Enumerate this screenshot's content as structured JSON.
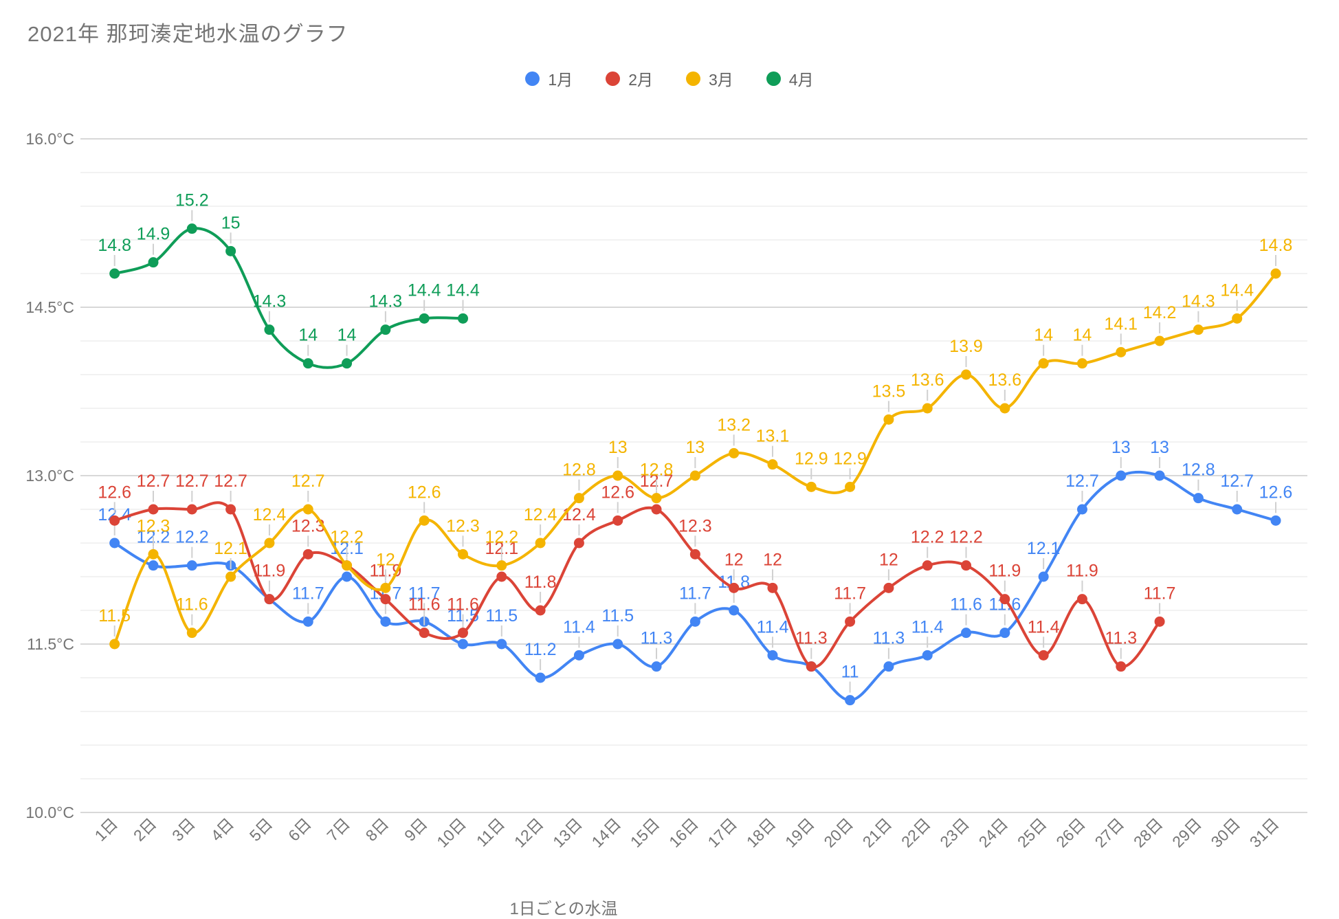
{
  "chart_data": {
    "type": "line",
    "title": "2021年 那珂湊定地水温のグラフ",
    "xlabel": "1日ごとの水温",
    "ylabel": "",
    "ylim": [
      10.0,
      16.0
    ],
    "y_major_step": 1.5,
    "y_minor_step": 0.3,
    "grid": true,
    "smooth": true,
    "legend_position": "top",
    "point_labels": true,
    "y_ticks": [
      {
        "label": "10.0°C",
        "value": 10.0
      },
      {
        "label": "11.5°C",
        "value": 11.5
      },
      {
        "label": "13.0°C",
        "value": 13.0
      },
      {
        "label": "14.5°C",
        "value": 14.5
      },
      {
        "label": "16.0°C",
        "value": 16.0
      }
    ],
    "categories": [
      "1日",
      "2日",
      "3日",
      "4日",
      "5日",
      "6日",
      "7日",
      "8日",
      "9日",
      "10日",
      "11日",
      "12日",
      "13日",
      "14日",
      "15日",
      "16日",
      "17日",
      "18日",
      "19日",
      "20日",
      "21日",
      "22日",
      "23日",
      "24日",
      "25日",
      "26日",
      "27日",
      "28日",
      "29日",
      "30日",
      "31日"
    ],
    "series": [
      {
        "name": "1月",
        "color": "#4285F4",
        "values": [
          12.4,
          12.2,
          12.2,
          12.2,
          11.9,
          11.7,
          12.1,
          11.7,
          11.7,
          11.5,
          11.5,
          11.2,
          11.4,
          11.5,
          11.3,
          11.7,
          11.8,
          11.4,
          11.3,
          11.0,
          11.3,
          11.4,
          11.6,
          11.6,
          12.1,
          12.7,
          13.0,
          13.0,
          12.8,
          12.7,
          12.6
        ],
        "labels": [
          "12.4",
          "12.2",
          "12.2",
          null,
          null,
          "11.7",
          "12.1",
          "11.7",
          "11.7",
          "11.5",
          "11.5",
          "11.2",
          "11.4",
          "11.5",
          "11.3",
          "11.7",
          "11.8",
          "11.4",
          null,
          "11",
          "11.3",
          "11.4",
          "11.6",
          "11.6",
          "12.1",
          "12.7",
          "13",
          "13",
          "12.8",
          "12.7",
          "12.6"
        ]
      },
      {
        "name": "2月",
        "color": "#DB4437",
        "values": [
          12.6,
          12.7,
          12.7,
          12.7,
          11.9,
          12.3,
          12.2,
          11.9,
          11.6,
          11.6,
          12.1,
          11.8,
          12.4,
          12.6,
          12.7,
          12.3,
          12.0,
          12.0,
          11.3,
          11.7,
          12.0,
          12.2,
          12.2,
          11.9,
          11.4,
          11.9,
          11.3,
          11.7
        ],
        "labels": [
          "12.6",
          "12.7",
          "12.7",
          "12.7",
          "11.9",
          "12.3",
          null,
          "11.9",
          "11.6",
          "11.6",
          "12.1",
          "11.8",
          "12.4",
          "12.6",
          "12.7",
          "12.3",
          "12",
          "12",
          "11.3",
          "11.7",
          "12",
          "12.2",
          "12.2",
          "11.9",
          "11.4",
          "11.9",
          "11.3",
          "11.7"
        ]
      },
      {
        "name": "3月",
        "color": "#F4B400",
        "values": [
          11.5,
          12.3,
          11.6,
          12.1,
          12.4,
          12.7,
          12.2,
          12.0,
          12.6,
          12.3,
          12.2,
          12.4,
          12.8,
          13.0,
          12.8,
          13.0,
          13.2,
          13.1,
          12.9,
          12.9,
          13.5,
          13.6,
          13.9,
          13.6,
          14.0,
          14.0,
          14.1,
          14.2,
          14.3,
          14.4,
          14.8
        ],
        "labels": [
          "11.5",
          "12.3",
          "11.6",
          "12.1",
          "12.4",
          "12.7",
          "12.2",
          "12",
          "12.6",
          "12.3",
          "12.2",
          "12.4",
          "12.8",
          "13",
          "12.8",
          "13",
          "13.2",
          "13.1",
          "12.9",
          "12.9",
          "13.5",
          "13.6",
          "13.9",
          "13.6",
          "14",
          "14",
          "14.1",
          "14.2",
          "14.3",
          "14.4",
          "14.8"
        ]
      },
      {
        "name": "4月",
        "color": "#0F9D58",
        "values": [
          14.8,
          14.9,
          15.2,
          15.0,
          14.3,
          14.0,
          14.0,
          14.3,
          14.4,
          14.4
        ],
        "labels": [
          "14.8",
          "14.9",
          "15.2",
          "15",
          "14.3",
          "14",
          "14",
          "14.3",
          "14.4",
          "14.4"
        ]
      }
    ]
  }
}
